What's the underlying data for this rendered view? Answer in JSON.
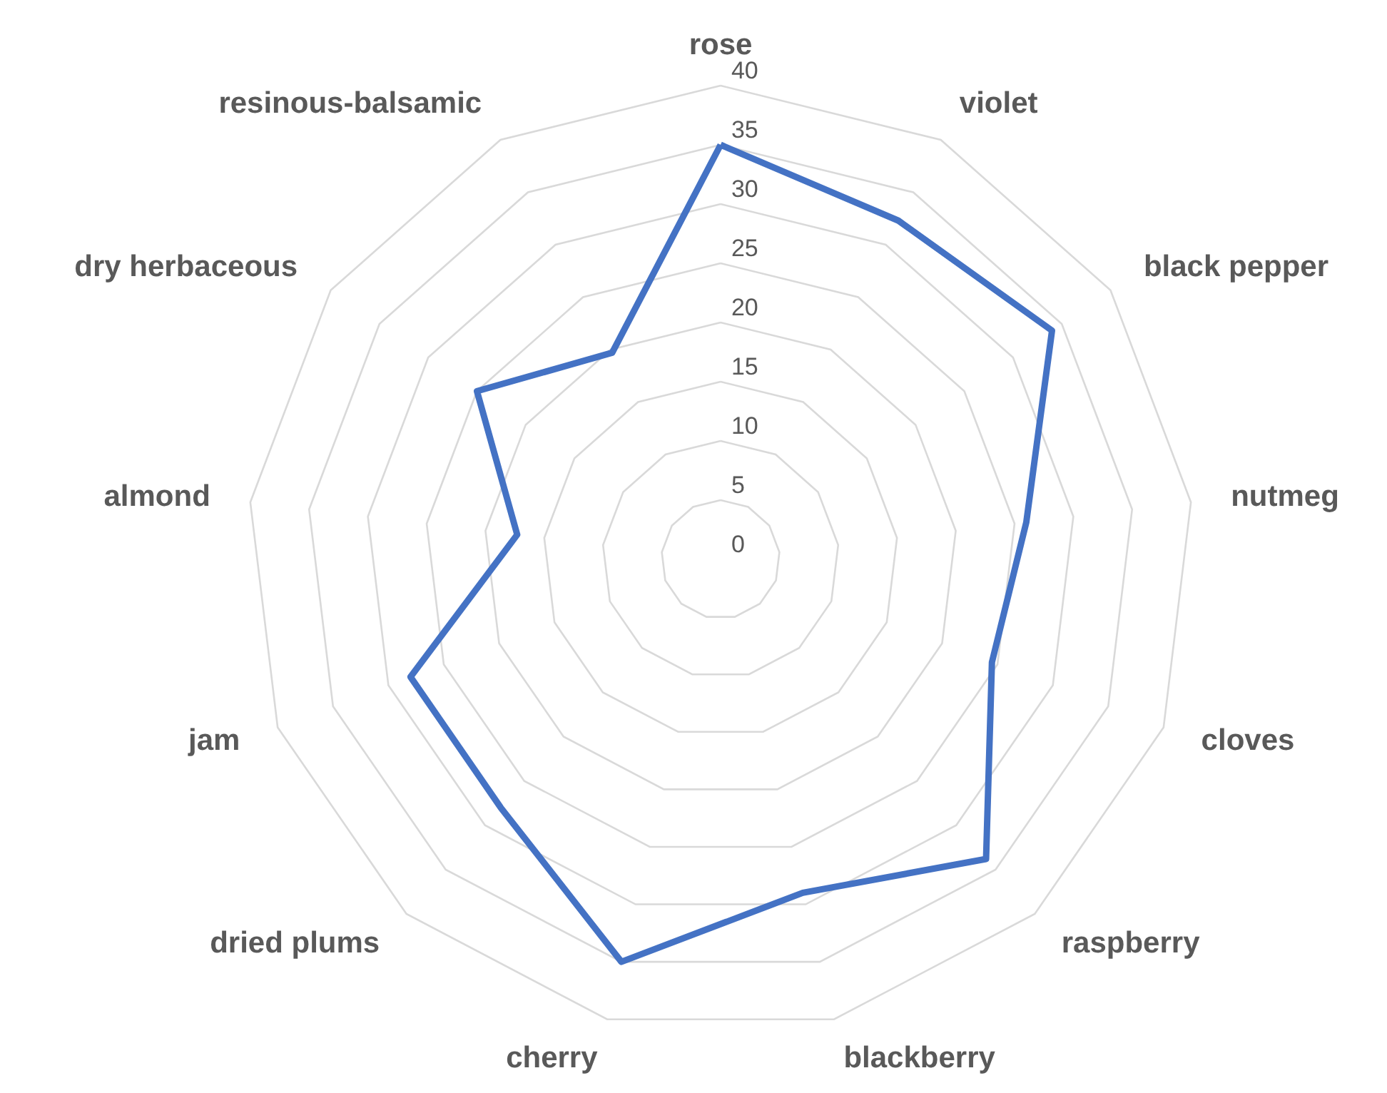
{
  "chart_data": {
    "type": "radar",
    "categories": [
      "rose",
      "violet",
      "black pepper",
      "nutmeg",
      "cloves",
      "raspberry",
      "blackberry",
      "cherry",
      "dried plums",
      "jam",
      "almond",
      "dry herbaceous",
      "resinous-balsamic"
    ],
    "series": [
      {
        "color": "#4472c4",
        "values": [
          35,
          32.3,
          34,
          26,
          24.5,
          33.8,
          29,
          35,
          28,
          28,
          17.3,
          25,
          19.7
        ]
      }
    ],
    "ylim": [
      0,
      40
    ],
    "yticks": [
      0,
      5,
      10,
      15,
      20,
      25,
      30,
      35,
      40
    ],
    "grid": true
  }
}
